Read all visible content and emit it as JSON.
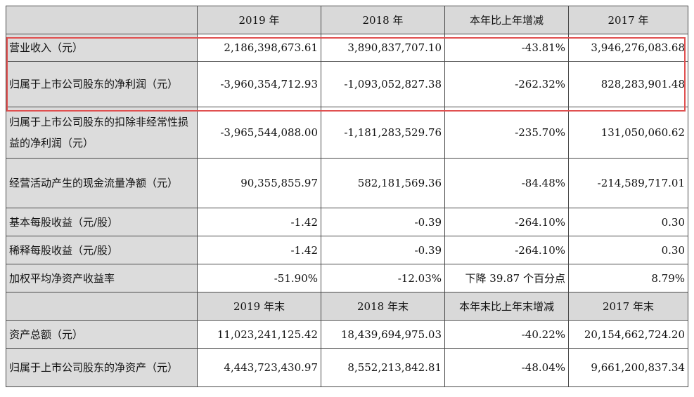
{
  "header1": [
    "2019 年",
    "2018 年",
    "本年比上年增减",
    "2017 年"
  ],
  "header2": [
    "2019 年末",
    "2018 年末",
    "本年末比上年末增减",
    "2017 年末"
  ],
  "rows_a": [
    {
      "label": "营业收入（元）",
      "v2019": "2,186,398,673.61",
      "v2018": "3,890,837,707.10",
      "change": "-43.81%",
      "v2017": "3,946,276,083.68"
    },
    {
      "label": "归属于上市公司股东的净利润（元）",
      "v2019": "-3,960,354,712.93",
      "v2018": "-1,093,052,827.38",
      "change": "-262.32%",
      "v2017": "828,283,901.48"
    },
    {
      "label": "归属于上市公司股东的扣除非经常性损益的净利润（元）",
      "v2019": "-3,965,544,088.00",
      "v2018": "-1,181,283,529.76",
      "change": "-235.70%",
      "v2017": "131,050,060.62"
    },
    {
      "label": "经营活动产生的现金流量净额（元）",
      "v2019": "90,355,855.97",
      "v2018": "582,181,569.36",
      "change": "-84.48%",
      "v2017": "-214,589,717.01"
    },
    {
      "label": "基本每股收益（元/股）",
      "v2019": "-1.42",
      "v2018": "-0.39",
      "change": "-264.10%",
      "v2017": "0.30"
    },
    {
      "label": "稀释每股收益（元/股）",
      "v2019": "-1.42",
      "v2018": "-0.39",
      "change": "-264.10%",
      "v2017": "0.30"
    },
    {
      "label": "加权平均净资产收益率",
      "v2019": "-51.90%",
      "v2018": "-12.03%",
      "change": "下降 39.87 个百分点",
      "v2017": "8.79%"
    }
  ],
  "rows_b": [
    {
      "label": "资产总额（元）",
      "v2019": "11,023,241,125.42",
      "v2018": "18,439,694,975.03",
      "change": "-40.22%",
      "v2017": "20,154,662,724.20"
    },
    {
      "label": "归属于上市公司股东的净资产（元）",
      "v2019": "4,443,723,430.97",
      "v2018": "8,552,213,842.81",
      "change": "-48.04%",
      "v2017": "9,661,200,837.34"
    }
  ],
  "highlight_color": "#e05050",
  "header_bg": "#d9d9d9"
}
